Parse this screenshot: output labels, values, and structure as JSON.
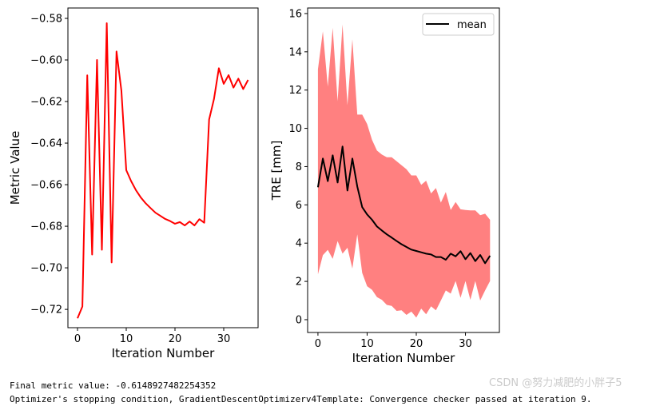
{
  "chart_data": [
    {
      "type": "line",
      "xlabel": "Iteration Number",
      "ylabel": "Metric Value",
      "xlim": [
        -1.97,
        37.05
      ],
      "ylim": [
        -0.7288,
        -0.575
      ],
      "xticks": [
        0,
        10,
        20,
        30
      ],
      "yticks": [
        -0.72,
        -0.7,
        -0.68,
        -0.66,
        -0.64,
        -0.62,
        -0.6,
        -0.58
      ],
      "ytick_labels": [
        "−0.72",
        "−0.70",
        "−0.68",
        "−0.66",
        "−0.64",
        "−0.62",
        "−0.60",
        "−0.58"
      ],
      "grid": false,
      "series": [
        {
          "color": "#ff0000",
          "x": [
            0,
            1,
            2,
            3,
            4,
            5,
            6,
            7,
            8,
            9,
            10,
            11,
            12,
            13,
            14,
            15,
            16,
            17,
            18,
            19,
            20,
            21,
            22,
            23,
            24,
            25,
            26,
            27,
            28,
            29,
            30,
            31,
            32,
            33,
            34,
            35
          ],
          "y": [
            -0.7243,
            -0.7186,
            -0.6074,
            -0.6936,
            -0.6,
            -0.6913,
            -0.5823,
            -0.6974,
            -0.5959,
            -0.6147,
            -0.653,
            -0.6583,
            -0.6627,
            -0.6662,
            -0.669,
            -0.6713,
            -0.6735,
            -0.675,
            -0.6765,
            -0.6775,
            -0.6788,
            -0.678,
            -0.6796,
            -0.6777,
            -0.6796,
            -0.6766,
            -0.6783,
            -0.6287,
            -0.6188,
            -0.604,
            -0.6115,
            -0.6073,
            -0.6133,
            -0.609,
            -0.614,
            -0.6096
          ]
        }
      ]
    },
    {
      "type": "line",
      "xlabel": "Iteration Number",
      "ylabel": "TRE [mm]",
      "xlim": [
        -2.1,
        36.9
      ],
      "ylim": [
        -0.67,
        16.29
      ],
      "xticks": [
        0,
        10,
        20,
        30
      ],
      "yticks": [
        0,
        2,
        4,
        6,
        8,
        10,
        12,
        14,
        16
      ],
      "grid": false,
      "legend": {
        "placement": "upper right",
        "entries": [
          "mean"
        ]
      },
      "x": [
        0,
        1,
        2,
        3,
        4,
        5,
        6,
        7,
        8,
        9,
        10,
        11,
        12,
        13,
        14,
        15,
        16,
        17,
        18,
        19,
        20,
        21,
        22,
        23,
        24,
        25,
        26,
        27,
        28,
        29,
        30,
        31,
        32,
        33,
        34,
        35
      ],
      "series": [
        {
          "name": "mean",
          "color": "#000000",
          "y": [
            6.92,
            8.42,
            7.24,
            8.59,
            7.17,
            9.05,
            6.75,
            8.42,
            6.96,
            5.88,
            5.5,
            5.22,
            4.87,
            4.66,
            4.46,
            4.29,
            4.11,
            3.94,
            3.8,
            3.66,
            3.59,
            3.52,
            3.45,
            3.41,
            3.27,
            3.27,
            3.13,
            3.45,
            3.31,
            3.58,
            3.16,
            3.48,
            3.06,
            3.38,
            2.95,
            3.34
          ]
        }
      ],
      "band": {
        "color": "#ff8080",
        "upper": [
          13.09,
          15.07,
          12.18,
          15.25,
          11.42,
          15.43,
          11.21,
          14.65,
          10.72,
          10.72,
          10.23,
          9.4,
          8.84,
          8.63,
          8.49,
          8.49,
          8.28,
          8.07,
          7.86,
          7.54,
          7.54,
          7.05,
          7.26,
          6.6,
          6.88,
          6.12,
          6.67,
          5.73,
          6.15,
          5.77,
          5.73,
          5.71,
          5.71,
          5.46,
          5.54,
          5.22
        ],
        "lower": [
          2.37,
          3.37,
          3.65,
          3.18,
          4.11,
          3.45,
          3.76,
          2.67,
          4.46,
          2.44,
          1.75,
          1.56,
          1.18,
          1.04,
          0.77,
          0.72,
          0.46,
          0.49,
          0.25,
          0.42,
          0.11,
          0.58,
          0.28,
          0.7,
          0.49,
          1.0,
          1.53,
          1.36,
          2.02,
          1.14,
          2.02,
          1.04,
          2.02,
          1.0,
          1.53,
          2.02
        ]
      }
    }
  ],
  "console": {
    "line1": "Final metric value: -0.6148927482254352",
    "line2": "Optimizer's stopping condition, GradientDescentOptimizerv4Template: Convergence checker passed at iteration 9."
  },
  "watermark": "CSDN @努力减肥的小胖子5"
}
